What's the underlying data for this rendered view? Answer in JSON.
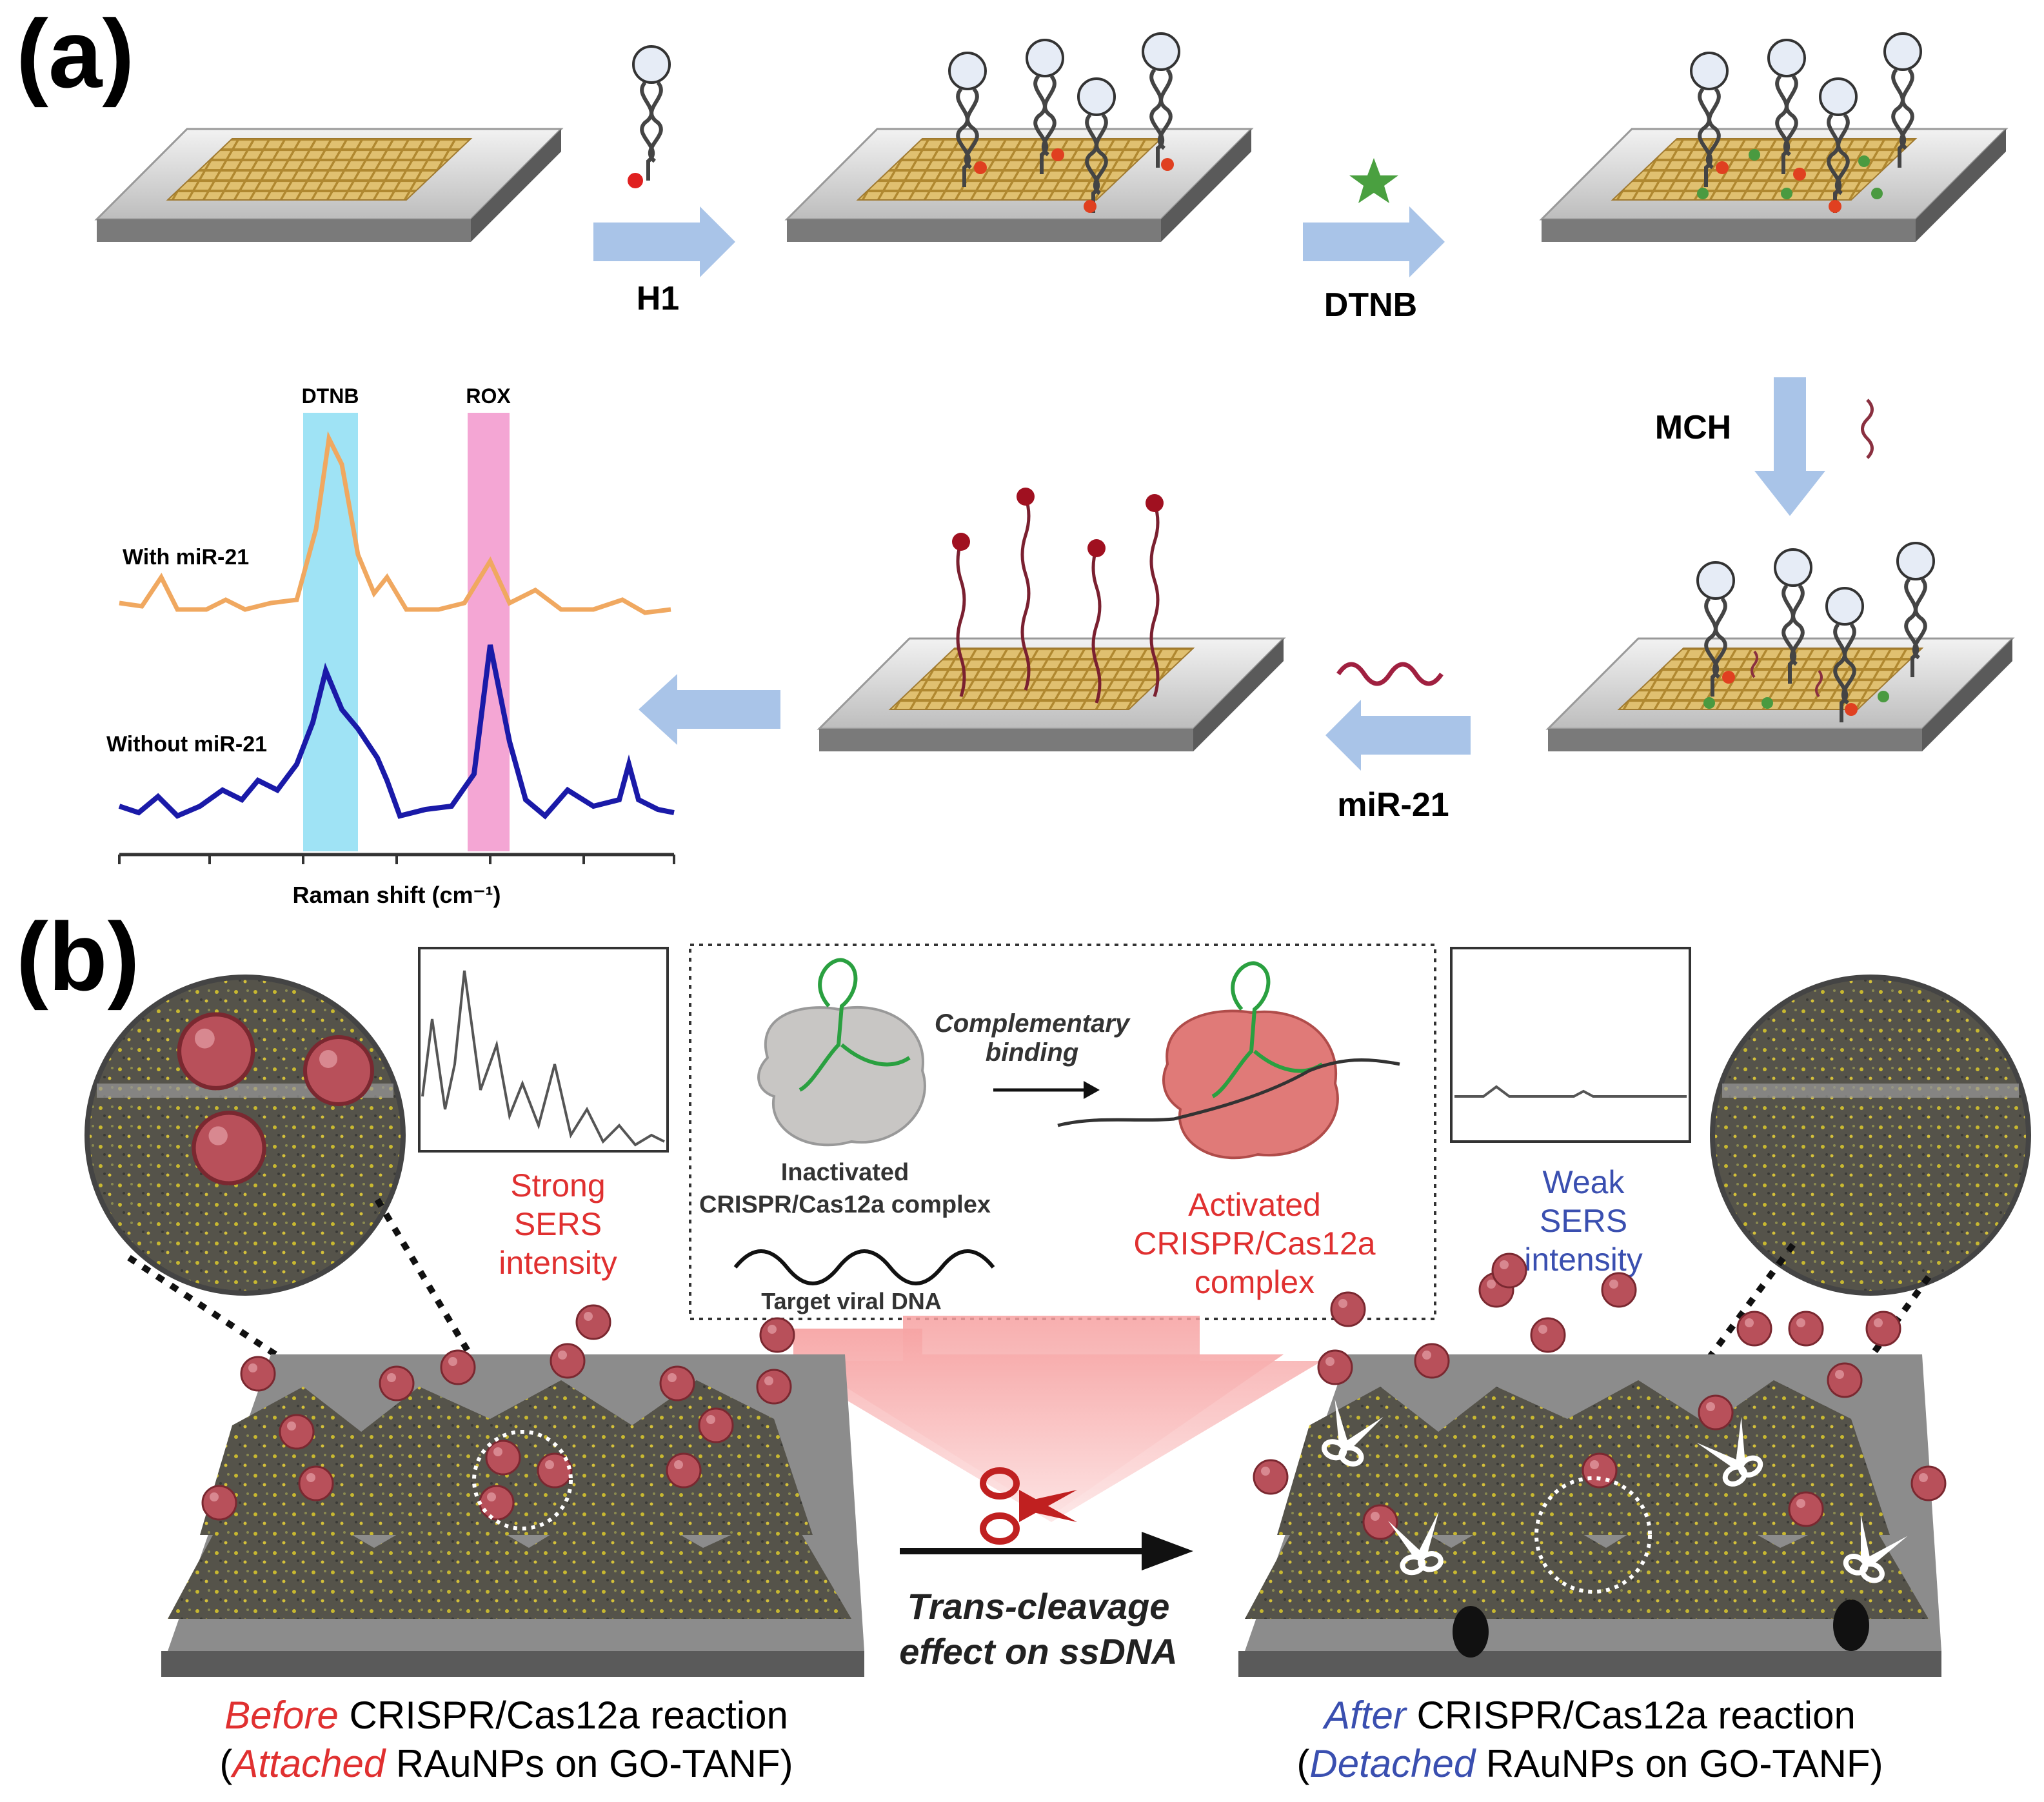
{
  "panel_a": {
    "label": "(a)",
    "steps": {
      "h1": "H1",
      "dtnb": "DTNB",
      "mch": "MCH",
      "mir21": "miR-21"
    },
    "spectrum": {
      "band_dtnb": "DTNB",
      "band_rox": "ROX",
      "trace_with": "With miR-21",
      "trace_without": "Without miR-21",
      "xlabel": "Raman shift (cm⁻¹)"
    }
  },
  "panel_b": {
    "label": "(b)",
    "strong": [
      "Strong",
      "SERS",
      "intensity"
    ],
    "weak": [
      "Weak",
      "SERS",
      "intensity"
    ],
    "complementary": [
      "Complementary",
      "binding"
    ],
    "inactivated": [
      "Inactivated",
      "CRISPR/Cas12a complex"
    ],
    "target": "Target viral DNA",
    "activated": [
      "Activated",
      "CRISPR/Cas12a",
      "complex"
    ],
    "trans": [
      "Trans-cleavage",
      "effect on ssDNA"
    ],
    "before": {
      "word": "Before",
      "rest": " CRISPR/Cas12a reaction",
      "open": "(",
      "word2": "Attached",
      "rest2": " RAuNPs on GO-TANF)"
    },
    "after": {
      "word": "After",
      "rest": " CRISPR/Cas12a reaction",
      "open": "(",
      "word2": "Detached",
      "rest2": " RAuNPs on GO-TANF)"
    }
  },
  "colors": {
    "accent_red": "#e03030",
    "accent_blue": "#3a4fb0",
    "arrow": "#a9c4e8",
    "dtnb_band": "#9fe3f5",
    "rox_band": "#f4a6d4",
    "trace_with": "#f0a860",
    "trace_without": "#1a1aa8"
  }
}
